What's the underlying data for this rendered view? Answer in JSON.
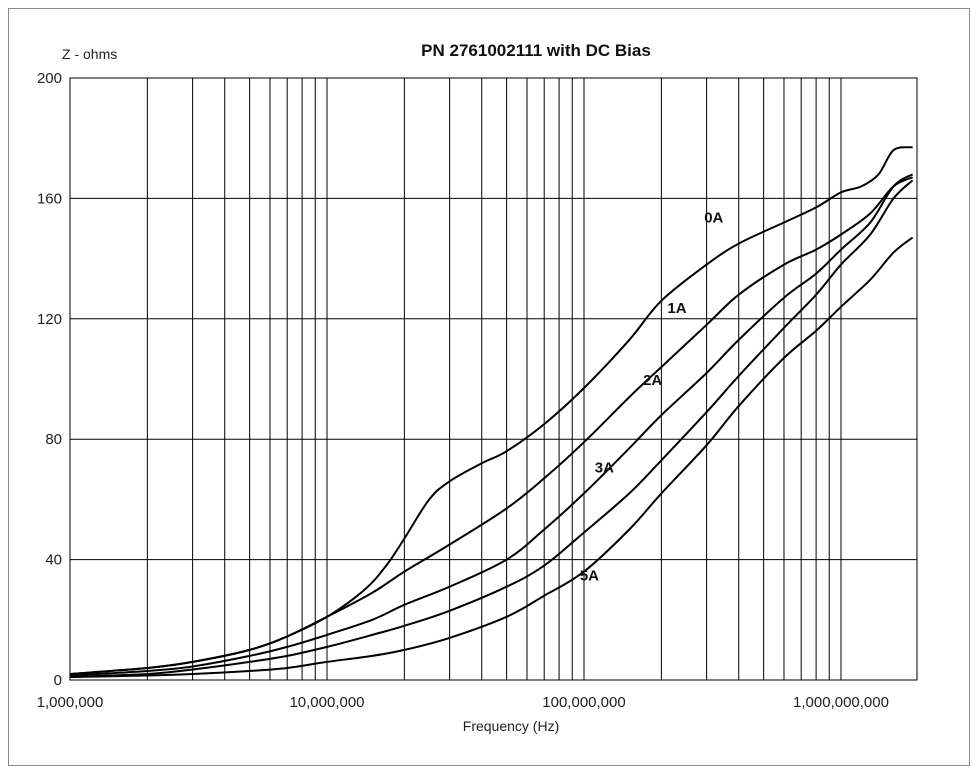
{
  "chart_data": {
    "type": "line",
    "title": "PN 2761002111 with DC Bias",
    "ylabel": "Z - ohms",
    "xlabel": "Frequency (Hz)",
    "x_scale": "log",
    "xlim": [
      1000000,
      2000000000
    ],
    "ylim": [
      0,
      200
    ],
    "x_ticks": [
      {
        "value": 1000000,
        "label": "1,000,000"
      },
      {
        "value": 10000000,
        "label": "10,000,000"
      },
      {
        "value": 100000000,
        "label": "100,000,000"
      },
      {
        "value": 1000000000,
        "label": "1,000,000,000"
      }
    ],
    "y_ticks": [
      {
        "value": 0,
        "label": "0"
      },
      {
        "value": 40,
        "label": "40"
      },
      {
        "value": 80,
        "label": "80"
      },
      {
        "value": 120,
        "label": "120"
      },
      {
        "value": 160,
        "label": "160"
      },
      {
        "value": 200,
        "label": "200"
      }
    ],
    "grid": true,
    "legend": "none",
    "series": [
      {
        "name": "0A",
        "label_at": {
          "x": 320000000,
          "y": 152
        },
        "points": [
          [
            1000000,
            2
          ],
          [
            2000000,
            4
          ],
          [
            3000000,
            6
          ],
          [
            5000000,
            10
          ],
          [
            7000000,
            14.5
          ],
          [
            10000000,
            21
          ],
          [
            14000000,
            30
          ],
          [
            17000000,
            38
          ],
          [
            20000000,
            47
          ],
          [
            25000000,
            60
          ],
          [
            30000000,
            66
          ],
          [
            40000000,
            72
          ],
          [
            50000000,
            76
          ],
          [
            70000000,
            85
          ],
          [
            100000000,
            97
          ],
          [
            150000000,
            113
          ],
          [
            200000000,
            126
          ],
          [
            300000000,
            138
          ],
          [
            400000000,
            145
          ],
          [
            600000000,
            152
          ],
          [
            800000000,
            157
          ],
          [
            1000000000,
            162
          ],
          [
            1200000000,
            164
          ],
          [
            1400000000,
            168
          ],
          [
            1600000000,
            176
          ],
          [
            1900000000,
            177
          ]
        ]
      },
      {
        "name": "1A",
        "label_at": {
          "x": 230000000,
          "y": 122
        },
        "points": [
          [
            1000000,
            2
          ],
          [
            2000000,
            4
          ],
          [
            3000000,
            6
          ],
          [
            5000000,
            10
          ],
          [
            7000000,
            14.5
          ],
          [
            10000000,
            21
          ],
          [
            15000000,
            29
          ],
          [
            20000000,
            36
          ],
          [
            30000000,
            45
          ],
          [
            50000000,
            57
          ],
          [
            70000000,
            67
          ],
          [
            100000000,
            79
          ],
          [
            150000000,
            94
          ],
          [
            200000000,
            104
          ],
          [
            300000000,
            118
          ],
          [
            400000000,
            128
          ],
          [
            600000000,
            138
          ],
          [
            800000000,
            143
          ],
          [
            1000000000,
            148
          ],
          [
            1300000000,
            155
          ],
          [
            1600000000,
            164
          ],
          [
            1900000000,
            167
          ]
        ]
      },
      {
        "name": "2A",
        "label_at": {
          "x": 185000000,
          "y": 98
        },
        "points": [
          [
            1000000,
            1.5
          ],
          [
            2000000,
            3
          ],
          [
            3000000,
            4.5
          ],
          [
            5000000,
            8
          ],
          [
            7000000,
            11
          ],
          [
            10000000,
            15
          ],
          [
            15000000,
            20
          ],
          [
            20000000,
            25
          ],
          [
            30000000,
            31
          ],
          [
            50000000,
            40
          ],
          [
            70000000,
            50
          ],
          [
            100000000,
            62
          ],
          [
            150000000,
            77
          ],
          [
            200000000,
            88
          ],
          [
            300000000,
            102
          ],
          [
            400000000,
            113
          ],
          [
            600000000,
            127
          ],
          [
            800000000,
            135
          ],
          [
            1000000000,
            143
          ],
          [
            1300000000,
            152
          ],
          [
            1600000000,
            164
          ],
          [
            1900000000,
            168
          ]
        ]
      },
      {
        "name": "3A",
        "label_at": {
          "x": 120000000,
          "y": 69
        },
        "points": [
          [
            1000000,
            1
          ],
          [
            2000000,
            2
          ],
          [
            3000000,
            3.5
          ],
          [
            5000000,
            6
          ],
          [
            7000000,
            8
          ],
          [
            10000000,
            11
          ],
          [
            15000000,
            15
          ],
          [
            20000000,
            18
          ],
          [
            30000000,
            23
          ],
          [
            50000000,
            31
          ],
          [
            70000000,
            38
          ],
          [
            100000000,
            49
          ],
          [
            150000000,
            62
          ],
          [
            200000000,
            73
          ],
          [
            300000000,
            89
          ],
          [
            400000000,
            101
          ],
          [
            600000000,
            117
          ],
          [
            800000000,
            128
          ],
          [
            1000000000,
            138
          ],
          [
            1300000000,
            148
          ],
          [
            1600000000,
            160
          ],
          [
            1900000000,
            166
          ]
        ]
      },
      {
        "name": "5A",
        "label_at": {
          "x": 105000000,
          "y": 33
        },
        "points": [
          [
            1000000,
            1
          ],
          [
            2000000,
            1.5
          ],
          [
            3000000,
            2
          ],
          [
            5000000,
            3
          ],
          [
            7000000,
            4
          ],
          [
            10000000,
            6
          ],
          [
            15000000,
            8
          ],
          [
            20000000,
            10
          ],
          [
            30000000,
            14
          ],
          [
            50000000,
            21
          ],
          [
            70000000,
            28
          ],
          [
            100000000,
            36
          ],
          [
            150000000,
            50
          ],
          [
            200000000,
            62
          ],
          [
            300000000,
            78
          ],
          [
            400000000,
            91
          ],
          [
            600000000,
            107
          ],
          [
            800000000,
            116
          ],
          [
            1000000000,
            124
          ],
          [
            1300000000,
            133
          ],
          [
            1600000000,
            142
          ],
          [
            1900000000,
            147
          ]
        ]
      }
    ]
  }
}
